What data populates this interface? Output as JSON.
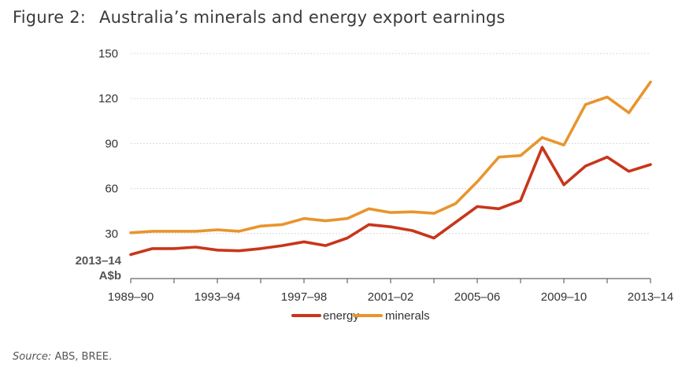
{
  "figure": {
    "label": "Figure 2:",
    "title": "Australia’s minerals and energy export earnings"
  },
  "source": {
    "prefix": "Source:",
    "text": " ABS, BREE."
  },
  "colors": {
    "energy": "#c8361b",
    "minerals": "#e8952d",
    "grid": "#d9d9d9",
    "axis": "#666666"
  },
  "chart_data": {
    "type": "line",
    "title": "Australia’s minerals and energy export earnings",
    "ylabel_line1": "2013–14",
    "ylabel_line2": "A$b",
    "xlabel": "",
    "ylim": [
      0,
      150
    ],
    "yticks": [
      30,
      60,
      90,
      120,
      150
    ],
    "grid": true,
    "legend_position": "bottom-center",
    "x": [
      "1989–90",
      "1990–91",
      "1991–92",
      "1992–93",
      "1993–94",
      "1994–95",
      "1995–96",
      "1996–97",
      "1997–98",
      "1998–99",
      "1999–00",
      "2000–01",
      "2001–02",
      "2002–03",
      "2003–04",
      "2004–05",
      "2005–06",
      "2006–07",
      "2007–08",
      "2008–09",
      "2009–10",
      "2010–11",
      "2011–12",
      "2012–13",
      "2013–14"
    ],
    "xtick_labels": [
      "1989–90",
      "1993–94",
      "1997–98",
      "2001–02",
      "2005–06",
      "2009–10",
      "2013–14"
    ],
    "xtick_indices": [
      0,
      4,
      8,
      12,
      16,
      20,
      24
    ],
    "series": [
      {
        "name": "energy",
        "values": [
          16,
          20,
          20,
          21,
          19,
          18.5,
          20,
          22,
          24.5,
          22,
          27,
          36,
          34.5,
          32,
          27,
          37.5,
          48,
          46.5,
          52,
          87.5,
          62.5,
          75,
          81,
          71.5,
          76
        ]
      },
      {
        "name": "minerals",
        "values": [
          30.5,
          31.5,
          31.5,
          31.5,
          32.5,
          31.5,
          35,
          36,
          40,
          38.5,
          40,
          46.5,
          44,
          44.5,
          43.5,
          50,
          64.5,
          81,
          82,
          94,
          89,
          116,
          121,
          110.5,
          131
        ]
      }
    ]
  }
}
